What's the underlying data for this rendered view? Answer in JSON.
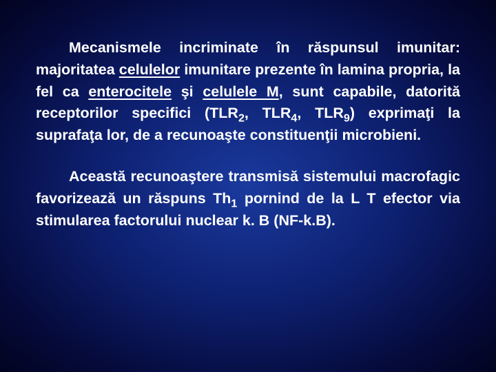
{
  "background": {
    "gradient_center": "#1a3a9e",
    "gradient_mid": "#0d1f6e",
    "gradient_outer": "#050a3a",
    "gradient_edge": "#020420"
  },
  "text_color": "#ffffff",
  "font_size_pt": 16,
  "font_weight": "bold",
  "line_height": 1.48,
  "p1": {
    "t1": "Mecanismele incriminate în răspunsul imunitar:",
    "t2": "majoritatea",
    "u1": "celulelor",
    "t3": "imunitare prezente în lamina propria, la fel ca",
    "u2": "enterocitele",
    "t4": "şi",
    "u3": "celulele M",
    "t5": ", sunt capabile, datorită receptorilor specifici (TLR",
    "s1": "2",
    "t6": ", TLR",
    "s2": "4",
    "t7": ", TLR",
    "s3": "9",
    "t8": ") exprimaţi la suprafaţa lor, de a recunoaşte constituenţii microbieni."
  },
  "p2": {
    "t1": "Această recunoaştere transmisă sistemului macrofagic favorizează un răspuns Th",
    "s1": "1",
    "t2": " pornind de la L T efector via stimularea factorului nuclear k. B (NF-k.B)."
  }
}
